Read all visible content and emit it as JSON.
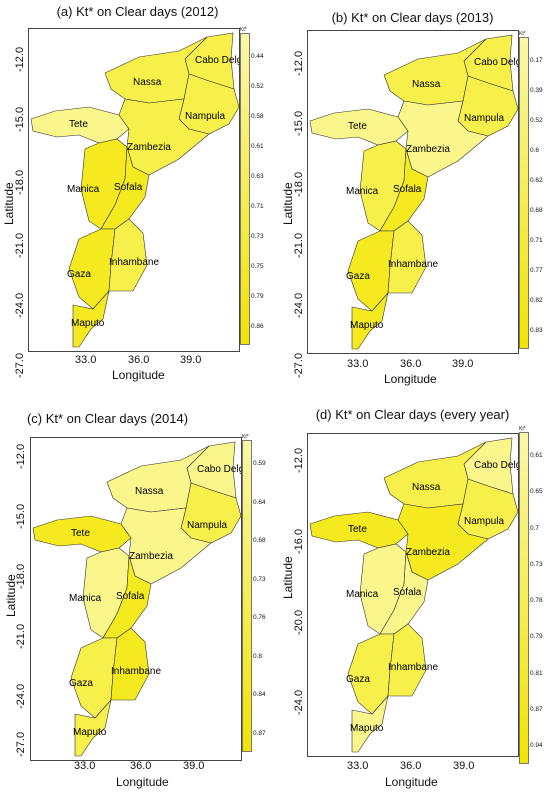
{
  "axis_labels": {
    "x": "Longitude",
    "y": "Latitude"
  },
  "legend_header": "Kt*",
  "colors": {
    "fill_light": "#fbf68c",
    "fill_mid": "#f8f04a",
    "fill_strong": "#f4ea1f",
    "border": "#333333",
    "legend_top": "#fbf7a6",
    "legend_bottom": "#f1e400"
  },
  "provinces": [
    "Cabo Delgado",
    "Nassa",
    "Nampula",
    "Tete",
    "Zambezia",
    "Manica",
    "Sofala",
    "Gaza",
    "Inhambane",
    "Maputo"
  ],
  "panels": [
    {
      "title": "(a) Kt* on Clear days (2012)",
      "lat_ticks": [
        "-12.0",
        "-15.0",
        "-18.0",
        "-21.0",
        "-24.0",
        "-27.0"
      ],
      "lon_ticks": [
        "33.0",
        "36.0",
        "39.0"
      ],
      "legend_values": [
        "0.44",
        "0.52",
        "0.58",
        "0.61",
        "0.63",
        "0.71",
        "0.73",
        "0.75",
        "0.79",
        "0.86"
      ],
      "province_fill": {
        "Cabo Delgado": "mid",
        "Nassa": "mid",
        "Nampula": "mid",
        "Tete": "light",
        "Zambezia": "mid",
        "Manica": "strong",
        "Sofala": "strong",
        "Gaza": "strong",
        "Inhambane": "mid",
        "Maputo": "strong"
      }
    },
    {
      "title": "(b) Kt* on Clear days (2013)",
      "lat_ticks": [
        "-12.0",
        "-15.0",
        "-18.0",
        "-21.0",
        "-24.0",
        "-27.0"
      ],
      "lon_ticks": [
        "33.0",
        "36.0",
        "39.0"
      ],
      "legend_values": [
        "0.17",
        "0.39",
        "0.52",
        "0.6",
        "0.62",
        "0.68",
        "0.71",
        "0.77",
        "0.82",
        "0.83"
      ],
      "province_fill": {
        "Cabo Delgado": "mid",
        "Nassa": "mid",
        "Nampula": "mid",
        "Tete": "light",
        "Zambezia": "light",
        "Manica": "mid",
        "Sofala": "strong",
        "Gaza": "strong",
        "Inhambane": "mid",
        "Maputo": "strong"
      }
    },
    {
      "title": "(c) Kt* on Clear days (2014)",
      "lat_ticks": [
        "-12.0",
        "-15.0",
        "-18.0",
        "-21.0",
        "-24.0",
        "-27.0"
      ],
      "lon_ticks": [
        "33.0",
        "36.0",
        "39.0"
      ],
      "legend_values": [
        "0.59",
        "0.64",
        "0.68",
        "0.73",
        "0.76",
        "0.8",
        "0.84",
        "0.87"
      ],
      "province_fill": {
        "Cabo Delgado": "light",
        "Nassa": "light",
        "Nampula": "mid",
        "Tete": "strong",
        "Zambezia": "light",
        "Manica": "light",
        "Sofala": "strong",
        "Gaza": "mid",
        "Inhambane": "strong",
        "Maputo": "mid"
      }
    },
    {
      "title": "(d) Kt* on Clear days (every year)",
      "lat_ticks": [
        "-12.0",
        "-16.0",
        "-20.0",
        "-24.0"
      ],
      "lon_ticks": [
        "33.0",
        "36.0",
        "39.0"
      ],
      "legend_values": [
        "0.61",
        "0.65",
        "0.7",
        "0.73",
        "0.78",
        "0.79",
        "0.81",
        "0.87",
        "0.94"
      ],
      "province_fill": {
        "Cabo Delgado": "light",
        "Nassa": "mid",
        "Nampula": "mid",
        "Tete": "strong",
        "Zambezia": "strong",
        "Manica": "light",
        "Sofala": "light",
        "Gaza": "mid",
        "Inhambane": "mid",
        "Maputo": "light"
      }
    }
  ]
}
